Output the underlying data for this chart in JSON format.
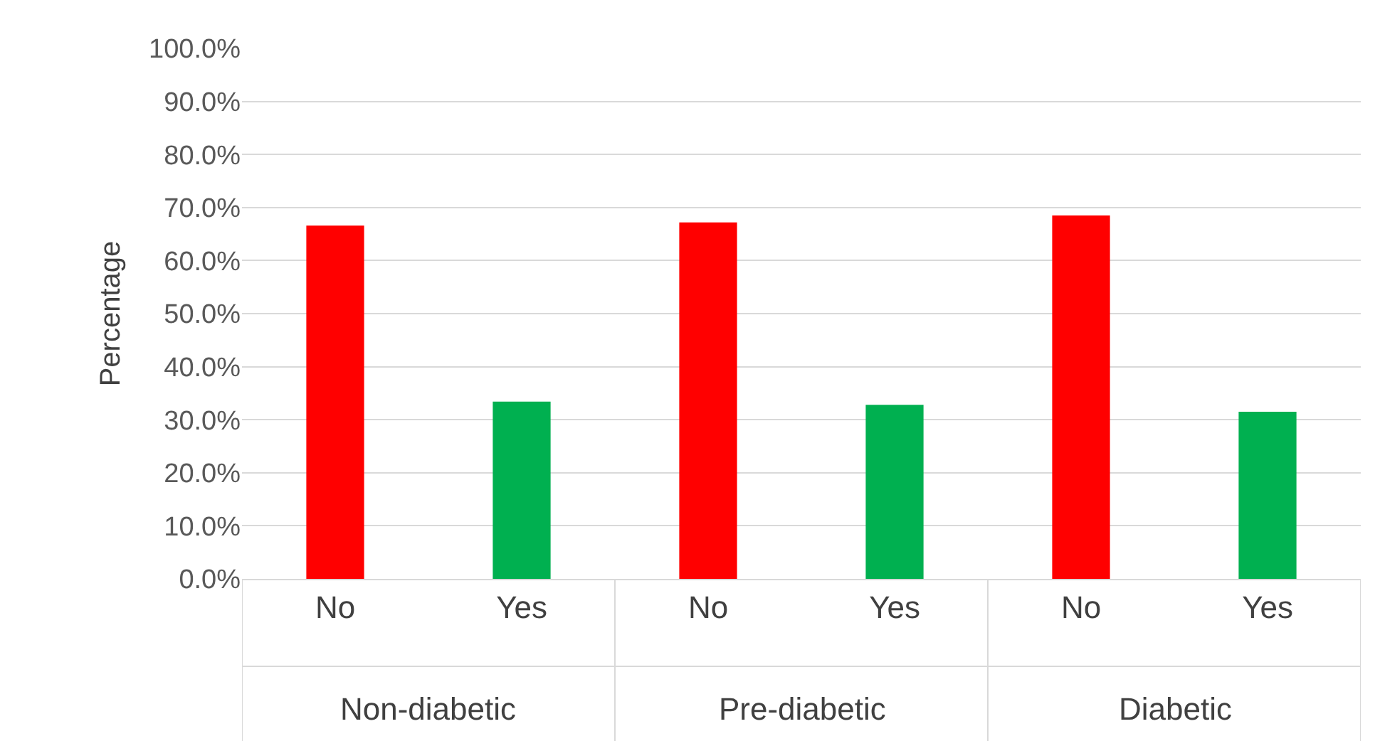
{
  "chart_data": {
    "type": "bar",
    "ylabel": "Percentage",
    "categories": [
      "No",
      "Yes",
      "No",
      "Yes",
      "No",
      "Yes"
    ],
    "values": [
      66.6,
      33.4,
      67.2,
      32.8,
      68.5,
      31.5
    ],
    "colors": [
      "#ff0000",
      "#00b050",
      "#ff0000",
      "#00b050",
      "#ff0000",
      "#00b050"
    ],
    "annotations": [
      "Non-diabetic",
      "Pre-diabetic",
      "Diabetic"
    ],
    "ylim": [
      0,
      100
    ],
    "yticks": [
      {
        "value": 0,
        "label": "0.0%"
      },
      {
        "value": 10,
        "label": "10.0%"
      },
      {
        "value": 20,
        "label": "20.0%"
      },
      {
        "value": 30,
        "label": "30.0%"
      },
      {
        "value": 40,
        "label": "40.0%"
      },
      {
        "value": 50,
        "label": "50.0%"
      },
      {
        "value": 60,
        "label": "60.0%"
      },
      {
        "value": 70,
        "label": "70.0%"
      },
      {
        "value": 80,
        "label": "80.0%"
      },
      {
        "value": 90,
        "label": "90.0%"
      },
      {
        "value": 100,
        "label": "100.0%"
      }
    ],
    "grid": "y"
  }
}
